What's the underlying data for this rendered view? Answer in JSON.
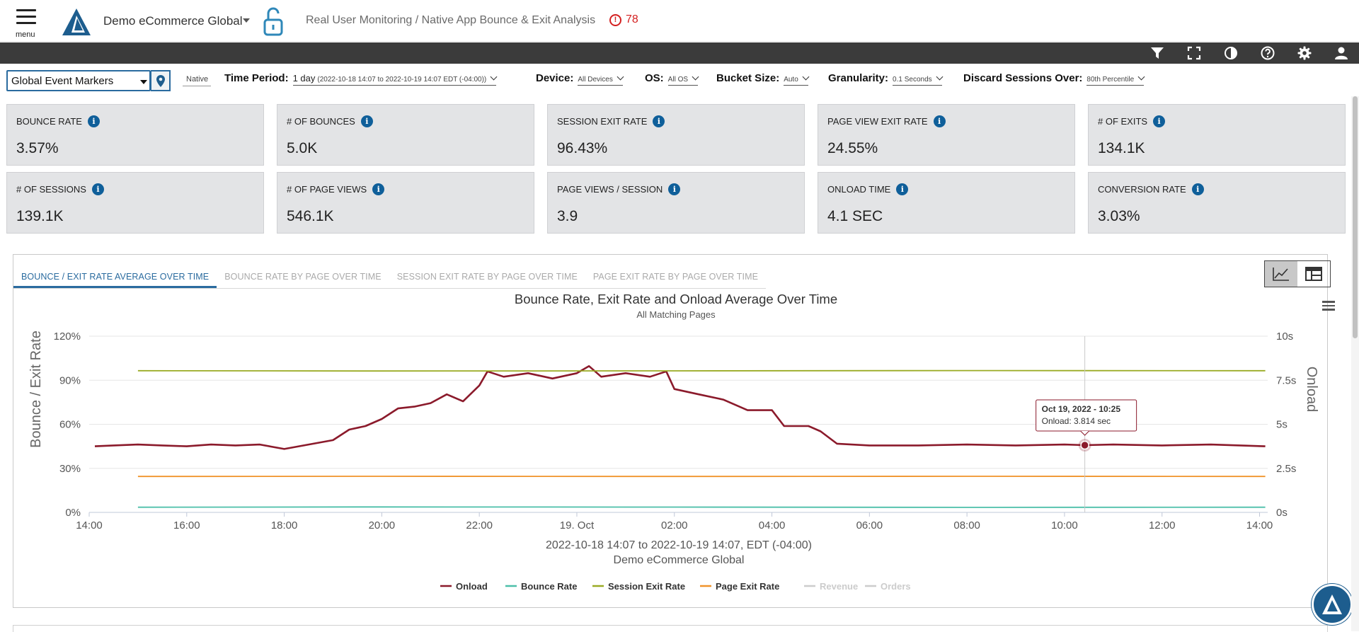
{
  "header": {
    "menu_label": "menu",
    "site_name": "Demo eCommerce Global",
    "breadcrumb": "Real User Monitoring / Native App Bounce & Exit Analysis",
    "alert_count": "78"
  },
  "toolbar": {
    "icons": [
      "filter-icon",
      "fullscreen-icon",
      "contrast-icon",
      "help-icon",
      "gear-icon",
      "user-icon"
    ]
  },
  "filters": {
    "marker_select": "Global Event Markers",
    "native_label": "Native",
    "time_period": {
      "label": "Time Period:",
      "value": "1 day",
      "detail": "(2022-10-18 14:07 to 2022-10-19 14:07 EDT (-04:00))"
    },
    "device": {
      "label": "Device:",
      "value": "All Devices"
    },
    "os": {
      "label": "OS:",
      "value": "All OS"
    },
    "bucket": {
      "label": "Bucket Size:",
      "value": "Auto"
    },
    "granularity": {
      "label": "Granularity:",
      "value": "0.1 Seconds"
    },
    "discard": {
      "label": "Discard Sessions Over:",
      "value": "80th Percentile"
    }
  },
  "kpis": [
    {
      "label": "BOUNCE RATE",
      "value": "3.57%"
    },
    {
      "label": "# OF BOUNCES",
      "value": "5.0K"
    },
    {
      "label": "SESSION EXIT RATE",
      "value": "96.43%"
    },
    {
      "label": "PAGE VIEW EXIT RATE",
      "value": "24.55%"
    },
    {
      "label": "# OF EXITS",
      "value": "134.1K"
    },
    {
      "label": "# OF SESSIONS",
      "value": "139.1K"
    },
    {
      "label": "# OF PAGE VIEWS",
      "value": "546.1K"
    },
    {
      "label": "PAGE VIEWS / SESSION",
      "value": "3.9"
    },
    {
      "label": "ONLOAD TIME",
      "value": "4.1 SEC"
    },
    {
      "label": "CONVERSION RATE",
      "value": "3.03%"
    }
  ],
  "tabs": [
    {
      "label": "BOUNCE / EXIT RATE AVERAGE OVER TIME",
      "active": true
    },
    {
      "label": "BOUNCE RATE BY PAGE OVER TIME",
      "active": false
    },
    {
      "label": "SESSION EXIT RATE BY PAGE OVER TIME",
      "active": false
    },
    {
      "label": "PAGE EXIT RATE BY PAGE OVER TIME",
      "active": false
    }
  ],
  "colors": {
    "onload": "#8b1a2b",
    "bounce": "#4cbfa9",
    "session_exit": "#9aab24",
    "page_exit": "#f0932a",
    "inactive": "#cccccc",
    "accent": "#2a6b9f"
  },
  "chart_data": {
    "type": "line",
    "title": "Bounce Rate, Exit Rate and Onload Average Over Time",
    "subtitle": "All Matching Pages",
    "ylabel": "Bounce / Exit Rate",
    "y2label": "Onload",
    "ylim": [
      0,
      120
    ],
    "y2lim": [
      0,
      10
    ],
    "yticks": [
      "0%",
      "30%",
      "60%",
      "90%",
      "120%"
    ],
    "y2ticks": [
      "0s",
      "2.5s",
      "5s",
      "7.5s",
      "10s"
    ],
    "xlim": [
      "2022-10-18 14:00",
      "2022-10-19 14:10"
    ],
    "xticks": [
      "14:00",
      "16:00",
      "18:00",
      "20:00",
      "22:00",
      "19. Oct",
      "02:00",
      "04:00",
      "06:00",
      "08:00",
      "10:00",
      "12:00",
      "14:00"
    ],
    "xlabel_lines": [
      "2022-10-18 14:07 to 2022-10-19 14:07, EDT (-04:00)",
      "Demo eCommerce Global"
    ],
    "grid": true,
    "legend_placement": "bottom-center",
    "series": [
      {
        "name": "Onload",
        "axis": "right",
        "unit": "s",
        "visible": true,
        "points": [
          [
            "2022-10-18 14:07",
            3.75
          ],
          [
            "2022-10-18 14:30",
            3.8
          ],
          [
            "2022-10-18 15:00",
            3.85
          ],
          [
            "2022-10-18 15:30",
            3.8
          ],
          [
            "2022-10-18 16:00",
            3.75
          ],
          [
            "2022-10-18 16:30",
            3.85
          ],
          [
            "2022-10-18 17:00",
            3.8
          ],
          [
            "2022-10-18 17:30",
            3.85
          ],
          [
            "2022-10-18 18:00",
            3.6
          ],
          [
            "2022-10-18 18:30",
            3.85
          ],
          [
            "2022-10-18 19:00",
            4.1
          ],
          [
            "2022-10-18 19:20",
            4.7
          ],
          [
            "2022-10-18 19:40",
            4.9
          ],
          [
            "2022-10-18 20:00",
            5.3
          ],
          [
            "2022-10-18 20:20",
            5.9
          ],
          [
            "2022-10-18 20:40",
            6.0
          ],
          [
            "2022-10-18 21:00",
            6.2
          ],
          [
            "2022-10-18 21:20",
            6.7
          ],
          [
            "2022-10-18 21:40",
            6.3
          ],
          [
            "2022-10-18 22:00",
            7.2
          ],
          [
            "2022-10-18 22:10",
            8.0
          ],
          [
            "2022-10-18 22:30",
            7.7
          ],
          [
            "2022-10-18 23:00",
            7.9
          ],
          [
            "2022-10-18 23:30",
            7.6
          ],
          [
            "2022-10-19 00:00",
            7.9
          ],
          [
            "2022-10-19 00:15",
            8.3
          ],
          [
            "2022-10-19 00:30",
            7.7
          ],
          [
            "2022-10-19 01:00",
            7.9
          ],
          [
            "2022-10-19 01:30",
            7.7
          ],
          [
            "2022-10-19 01:50",
            8.0
          ],
          [
            "2022-10-19 02:00",
            7.0
          ],
          [
            "2022-10-19 02:30",
            6.7
          ],
          [
            "2022-10-19 03:00",
            6.4
          ],
          [
            "2022-10-19 03:30",
            5.8
          ],
          [
            "2022-10-19 04:00",
            5.8
          ],
          [
            "2022-10-19 04:15",
            4.9
          ],
          [
            "2022-10-19 04:45",
            4.9
          ],
          [
            "2022-10-19 05:00",
            4.6
          ],
          [
            "2022-10-19 05:20",
            3.9
          ],
          [
            "2022-10-19 06:00",
            3.8
          ],
          [
            "2022-10-19 07:00",
            3.8
          ],
          [
            "2022-10-19 08:00",
            3.85
          ],
          [
            "2022-10-19 09:00",
            3.8
          ],
          [
            "2022-10-19 10:00",
            3.85
          ],
          [
            "2022-10-19 10:25",
            3.814
          ],
          [
            "2022-10-19 11:00",
            3.85
          ],
          [
            "2022-10-19 12:00",
            3.8
          ],
          [
            "2022-10-19 13:00",
            3.85
          ],
          [
            "2022-10-19 14:07",
            3.75
          ]
        ]
      },
      {
        "name": "Bounce Rate",
        "axis": "left",
        "unit": "%",
        "visible": true,
        "points": [
          [
            "2022-10-18 15:00",
            3.5
          ],
          [
            "2022-10-18 20:00",
            3.7
          ],
          [
            "2022-10-19 02:00",
            3.6
          ],
          [
            "2022-10-19 08:00",
            3.4
          ],
          [
            "2022-10-19 14:07",
            3.5
          ]
        ]
      },
      {
        "name": "Session Exit Rate",
        "axis": "left",
        "unit": "%",
        "visible": true,
        "points": [
          [
            "2022-10-18 15:00",
            96.5
          ],
          [
            "2022-10-18 20:00",
            96.3
          ],
          [
            "2022-10-19 02:00",
            96.4
          ],
          [
            "2022-10-19 08:00",
            96.6
          ],
          [
            "2022-10-19 14:07",
            96.5
          ]
        ]
      },
      {
        "name": "Page Exit Rate",
        "axis": "left",
        "unit": "%",
        "visible": true,
        "points": [
          [
            "2022-10-18 15:00",
            24.5
          ],
          [
            "2022-10-18 20:00",
            24.6
          ],
          [
            "2022-10-19 02:00",
            24.5
          ],
          [
            "2022-10-19 08:00",
            24.6
          ],
          [
            "2022-10-19 14:07",
            24.5
          ]
        ]
      },
      {
        "name": "Revenue",
        "visible": false,
        "points": []
      },
      {
        "name": "Orders",
        "visible": false,
        "points": []
      }
    ],
    "tooltip": {
      "title": "Oct 19, 2022 - 10:25",
      "text": "Onload: 3.814 sec",
      "x": "2022-10-19 10:25",
      "y": 3.814
    }
  }
}
